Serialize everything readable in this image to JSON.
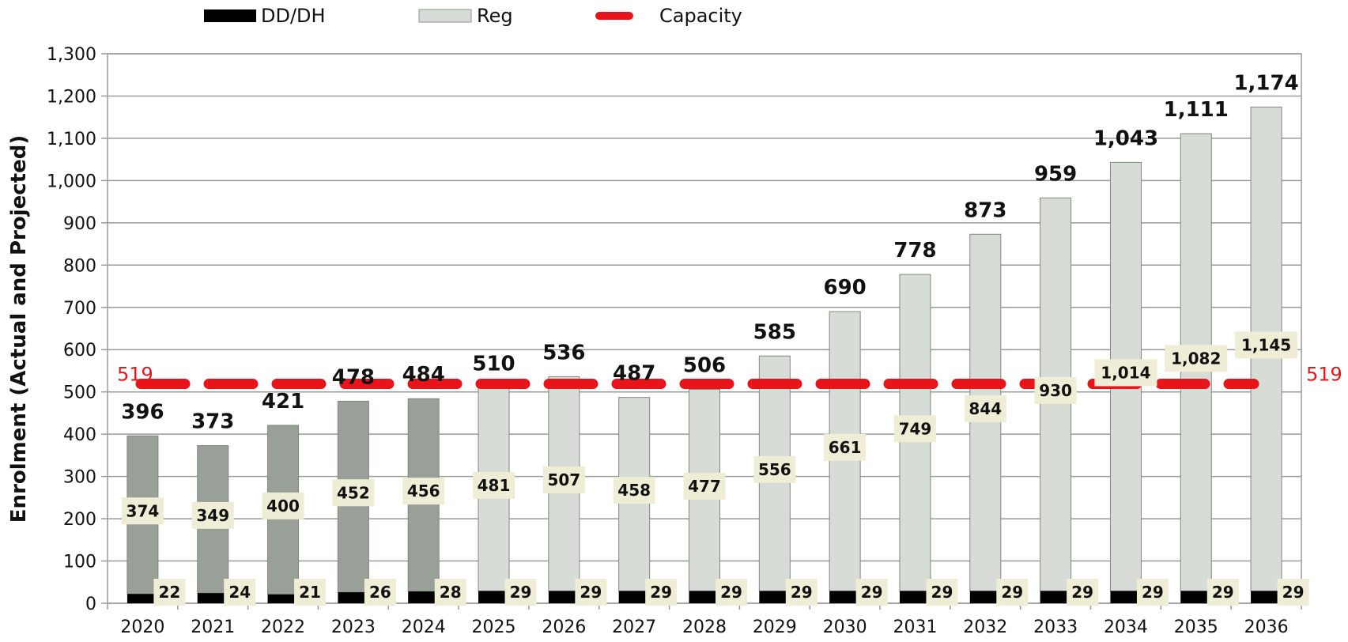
{
  "chart_data": {
    "type": "bar",
    "stacked": true,
    "ylabel": "Enrolment (Actual and Projected)",
    "ylim": [
      0,
      1300
    ],
    "ytick_step": 100,
    "yticks": [
      "0",
      "100",
      "200",
      "300",
      "400",
      "500",
      "600",
      "700",
      "800",
      "900",
      "1,000",
      "1,100",
      "1,200",
      "1,300"
    ],
    "grid": true,
    "legend_position": "top",
    "categories": [
      "2020",
      "2021",
      "2022",
      "2023",
      "2024",
      "2025",
      "2026",
      "2027",
      "2028",
      "2029",
      "2030",
      "2031",
      "2032",
      "2033",
      "2034",
      "2035",
      "2036"
    ],
    "legend": {
      "ddh": "DD/DH",
      "reg": "Reg",
      "capacity": "Capacity"
    },
    "series": [
      {
        "name": "DD/DH",
        "color": "#000000",
        "values": [
          22,
          24,
          21,
          26,
          28,
          29,
          29,
          29,
          29,
          29,
          29,
          29,
          29,
          29,
          29,
          29,
          29
        ],
        "labels": [
          "22",
          "24",
          "21",
          "26",
          "28",
          "29",
          "29",
          "29",
          "29",
          "29",
          "29",
          "29",
          "29",
          "29",
          "29",
          "29",
          "29"
        ]
      },
      {
        "name": "Reg",
        "actual_color": "#98a097",
        "projected_color": "#d7dcd6",
        "actual_count": 5,
        "values": [
          374,
          349,
          400,
          452,
          456,
          481,
          507,
          458,
          477,
          556,
          661,
          749,
          844,
          930,
          1014,
          1082,
          1145
        ],
        "labels": [
          "374",
          "349",
          "400",
          "452",
          "456",
          "481",
          "507",
          "458",
          "477",
          "556",
          "661",
          "749",
          "844",
          "930",
          "1,014",
          "1,082",
          "1,145"
        ]
      }
    ],
    "totals": [
      396,
      373,
      421,
      478,
      484,
      510,
      536,
      487,
      506,
      585,
      690,
      778,
      873,
      959,
      1043,
      1111,
      1174
    ],
    "total_labels": [
      "396",
      "373",
      "421",
      "478",
      "484",
      "510",
      "536",
      "487",
      "506",
      "585",
      "690",
      "778",
      "873",
      "959",
      "1,043",
      "1,111",
      "1,174"
    ],
    "capacity": {
      "name": "Capacity",
      "value": 519,
      "label_left": "519",
      "label_right": "519",
      "color": "#e8141a"
    },
    "label_box_color": "#efedd6"
  }
}
